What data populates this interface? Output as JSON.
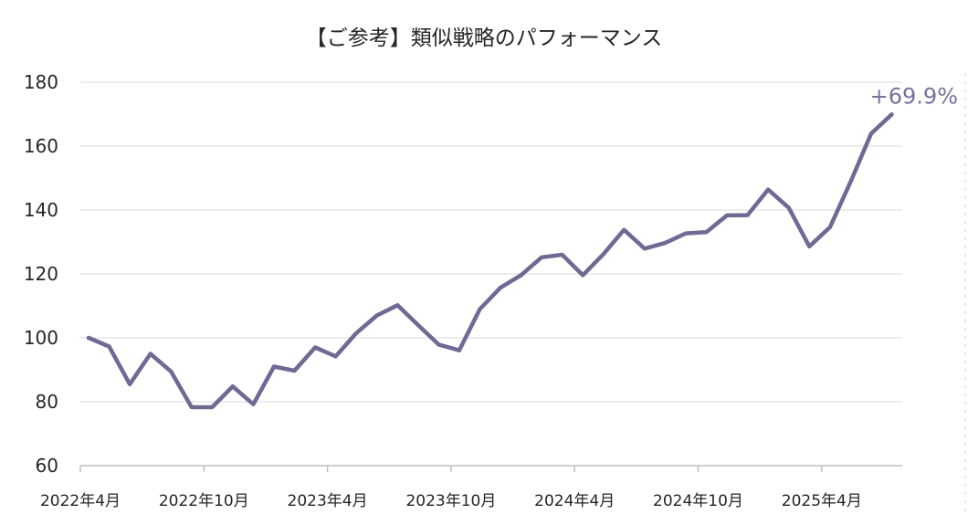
{
  "chart_data": {
    "type": "line",
    "title": "【ご参考】類似戦略のパフォーマンス",
    "xlabel": "",
    "ylabel": "",
    "ylim": [
      60,
      180
    ],
    "y_ticks": [
      60,
      80,
      100,
      120,
      140,
      160,
      180
    ],
    "x_tick_labels": [
      {
        "index": 0,
        "label": "2022年4月"
      },
      {
        "index": 6,
        "label": "2022年10月"
      },
      {
        "index": 12,
        "label": "2023年4月"
      },
      {
        "index": 18,
        "label": "2023年10月"
      },
      {
        "index": 24,
        "label": "2024年4月"
      },
      {
        "index": 30,
        "label": "2024年10月"
      },
      {
        "index": 36,
        "label": "2025年4月"
      }
    ],
    "grid": "horizontal",
    "series": [
      {
        "color": "#6e6a94",
        "values": [
          100,
          97.3,
          85.5,
          95,
          89.5,
          78.3,
          78.3,
          84.8,
          79.2,
          91,
          89.7,
          97,
          94.2,
          101.5,
          107,
          110.2,
          104,
          97.9,
          96.1,
          109,
          115.7,
          119.6,
          125.2,
          126,
          119.6,
          126.2,
          133.8,
          127.9,
          129.7,
          132.7,
          133.1,
          138.3,
          138.4,
          146.4,
          140.7,
          128.6,
          134.6,
          148.8,
          163.9,
          169.9
        ]
      }
    ],
    "annotations": [
      {
        "text": "+69.9%",
        "at_index": 39
      }
    ]
  }
}
